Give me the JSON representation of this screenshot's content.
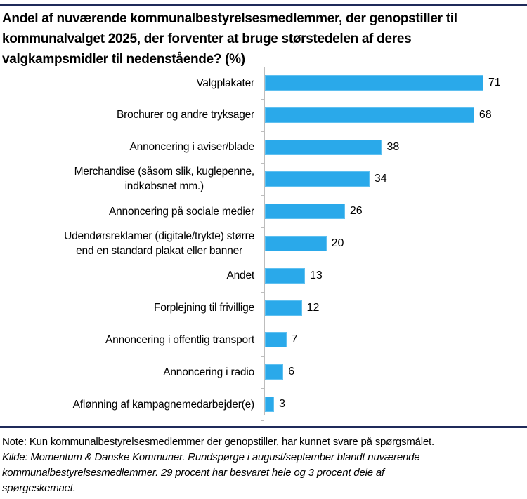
{
  "chart_data": {
    "type": "bar",
    "orientation": "horizontal",
    "title": "Andel af nuværende kommunalbestyrelsesmedlemmer, der genopstiller til kommunalvalget 2025, der forventer at bruge størstedelen af deres valgkampsmidler til nedenstående? (%)",
    "title_lines": [
      "Andel af nuværende kommunalbestyrelsesmedlemmer, der genopstiller til",
      "kommunalvalget 2025, der forventer at bruge størstedelen af deres",
      "valgkampsmidler til nedenstående? (%)"
    ],
    "categories": [
      "Valgplakater",
      "Brochurer og andre tryksager",
      "Annoncering i aviser/blade",
      "Merchandise (såsom slik, kuglepenne, indkøbsnet mm.)",
      "Annoncering på sociale medier",
      "Udendørsreklamer (digitale/trykte) større end en standard plakat eller banner",
      "Andet",
      "Forplejning til frivillige",
      "Annoncering i offentlig transport",
      "Annoncering i radio",
      "Aflønning af kampagnemedarbejder(e)"
    ],
    "label_lines": [
      [
        "Valgplakater"
      ],
      [
        "Brochurer og andre tryksager"
      ],
      [
        "Annoncering i aviser/blade"
      ],
      [
        "Merchandise (såsom slik, kuglepenne,",
        "indkøbsnet mm.)"
      ],
      [
        "Annoncering på sociale medier"
      ],
      [
        "Udendørsreklamer (digitale/trykte) større",
        "end en standard plakat eller banner"
      ],
      [
        "Andet"
      ],
      [
        "Forplejning til frivillige"
      ],
      [
        "Annoncering i offentlig transport"
      ],
      [
        "Annoncering i radio"
      ],
      [
        "Aflønning af kampagnemedarbejder(e)"
      ]
    ],
    "values": [
      71,
      68,
      38,
      34,
      26,
      20,
      13,
      12,
      7,
      6,
      3
    ],
    "xlabel": "",
    "ylabel": "",
    "unit": "%",
    "data_labels": true,
    "grid": false,
    "legend": null,
    "bar_color": "#2aa9ea"
  },
  "footer": {
    "note": "Note: Kun kommunalbestyrelsesmedlemmer der genopstiller, har kunnet svare på spørgsmålet.",
    "source_lines": [
      "Kilde: Momentum & Danske Kommuner. Rundspørge i august/september blandt nuværende",
      "kommunalbestyrelsesmedlemmer. 29 procent har besvaret hele og 3 procent dele af",
      "spørgeskemaet."
    ]
  }
}
